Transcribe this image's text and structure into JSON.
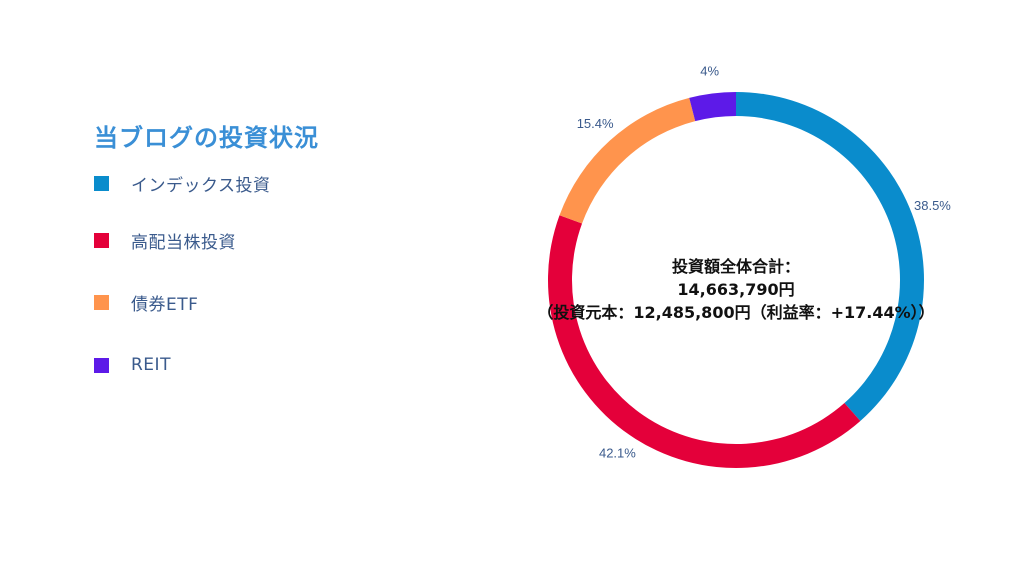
{
  "legend": {
    "title": "当ブログの投資状況",
    "items": [
      {
        "label": "インデックス投資",
        "color": "#0a8ccc"
      },
      {
        "label": "高配当株投資",
        "color": "#e4003a"
      },
      {
        "label": "債券ETF",
        "color": "#ff944d"
      },
      {
        "label": "REIT",
        "color": "#5d1ae8"
      }
    ]
  },
  "chart_data": {
    "type": "pie",
    "variant": "donut",
    "categories": [
      "インデックス投資",
      "高配当株投資",
      "債券ETF",
      "REIT"
    ],
    "values": [
      38.5,
      42.1,
      15.4,
      4
    ],
    "value_labels": [
      "38.5%",
      "42.1%",
      "15.4%",
      "4%"
    ],
    "colors": [
      "#0a8ccc",
      "#e4003a",
      "#ff944d",
      "#5d1ae8"
    ],
    "start": "top, clockwise",
    "center_text": [
      "投資額全体合計：",
      "14,663,790円",
      "（投資元本：12,485,800円（利益率：+17.44%））"
    ]
  }
}
